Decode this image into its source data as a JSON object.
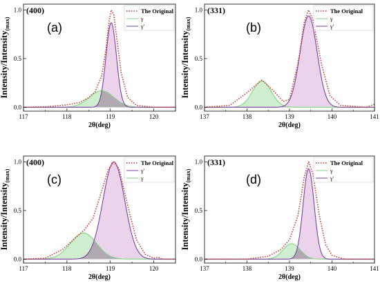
{
  "chart_data": [
    {
      "id": "a",
      "type": "line",
      "panel_label": "(a)",
      "peak_label": "(400)",
      "xlabel": "2θ(deg)",
      "ylabel": "Intensity/Intensity(max)",
      "xlim": [
        117,
        120.5
      ],
      "ylim": [
        -0.04,
        1.06
      ],
      "xticks": [
        117,
        118,
        119,
        120
      ],
      "yticks": [
        0.0,
        0.5,
        1.0
      ],
      "grid": false,
      "legend": {
        "placement": "top-right",
        "entries": [
          {
            "name": "The Original",
            "style": "dotted",
            "color": "#c0392b",
            "bold": true
          },
          {
            "name": "γ",
            "style": "solid",
            "color": "#7fd57f"
          },
          {
            "name": "γ'",
            "style": "solid",
            "color": "#7b3fa0"
          }
        ]
      },
      "series": [
        {
          "name": "γ",
          "color": "#7fd57f",
          "fill": "#bfe8bf",
          "peak": {
            "center": 118.8,
            "height": 0.17,
            "sigma": 0.28
          }
        },
        {
          "name": "γ'",
          "color": "#7b3fa0",
          "fill": "#e4c4e6",
          "peak": {
            "center": 119.02,
            "height": 0.87,
            "sigma": 0.12
          }
        },
        {
          "name": "The Original",
          "color": "#c0392b",
          "dotted": true,
          "points": [
            [
              117,
              0
            ],
            [
              117.5,
              0.005
            ],
            [
              118,
              0.025
            ],
            [
              118.3,
              0.05
            ],
            [
              118.5,
              0.1
            ],
            [
              118.65,
              0.16
            ],
            [
              118.8,
              0.32
            ],
            [
              118.9,
              0.6
            ],
            [
              118.97,
              0.88
            ],
            [
              119.02,
              1.0
            ],
            [
              119.08,
              0.95
            ],
            [
              119.15,
              0.7
            ],
            [
              119.25,
              0.35
            ],
            [
              119.4,
              0.1
            ],
            [
              119.6,
              0.02
            ],
            [
              120,
              0.0
            ],
            [
              120.5,
              0.0
            ]
          ]
        }
      ]
    },
    {
      "id": "b",
      "type": "line",
      "panel_label": "(b)",
      "peak_label": "(331)",
      "xlabel": "2θ(deg)",
      "ylabel": "Intensity/Intensity(max)",
      "xlim": [
        137,
        141
      ],
      "ylim": [
        -0.04,
        1.06
      ],
      "xticks": [
        137,
        138,
        139,
        140,
        141
      ],
      "yticks": [
        0.0,
        0.5,
        1.0
      ],
      "grid": false,
      "legend": {
        "placement": "top-right",
        "entries": [
          {
            "name": "The  Original",
            "style": "dotted",
            "color": "#c0392b",
            "bold": true
          },
          {
            "name": "γ",
            "style": "solid",
            "color": "#7fd57f"
          },
          {
            "name": "γ'",
            "style": "solid",
            "color": "#7b3fa0"
          }
        ]
      },
      "series": [
        {
          "name": "γ",
          "color": "#7fd57f",
          "fill": "#bfe8bf",
          "peak": {
            "center": 138.35,
            "height": 0.27,
            "sigma": 0.22
          }
        },
        {
          "name": "γ'",
          "color": "#7b3fa0",
          "fill": "#e4c4e6",
          "peak": {
            "center": 139.45,
            "height": 0.94,
            "sigma": 0.2
          }
        },
        {
          "name": "The Original",
          "color": "#c0392b",
          "dotted": true,
          "points": [
            [
              137,
              0
            ],
            [
              137.6,
              0.02
            ],
            [
              138,
              0.15
            ],
            [
              138.35,
              0.28
            ],
            [
              138.6,
              0.18
            ],
            [
              138.85,
              0.06
            ],
            [
              139.0,
              0.08
            ],
            [
              139.2,
              0.45
            ],
            [
              139.35,
              0.88
            ],
            [
              139.45,
              1.0
            ],
            [
              139.55,
              0.9
            ],
            [
              139.75,
              0.45
            ],
            [
              139.95,
              0.12
            ],
            [
              140.2,
              0.02
            ],
            [
              140.8,
              0.0
            ],
            [
              141,
              0.03
            ]
          ]
        }
      ]
    },
    {
      "id": "c",
      "type": "line",
      "panel_label": "(c)",
      "peak_label": "(400)",
      "xlabel": "2θ(deg)",
      "ylabel": "Intensity/Intensity(max)",
      "xlim": [
        117,
        120.5
      ],
      "ylim": [
        -0.04,
        1.06
      ],
      "xticks": [
        117,
        118,
        119,
        120
      ],
      "yticks": [
        0.0,
        0.5,
        1.0
      ],
      "grid": false,
      "legend": {
        "placement": "top-right",
        "entries": [
          {
            "name": "The Original",
            "style": "dotted",
            "color": "#c0392b",
            "bold": true
          },
          {
            "name": "γ'",
            "style": "solid",
            "color": "#7b3fa0"
          },
          {
            "name": "γ",
            "style": "solid",
            "color": "#7fd57f"
          }
        ]
      },
      "series": [
        {
          "name": "γ",
          "color": "#7fd57f",
          "fill": "#bfe8bf",
          "peak": {
            "center": 118.38,
            "height": 0.27,
            "sigma": 0.3
          }
        },
        {
          "name": "γ'",
          "color": "#7b3fa0",
          "fill": "#e4c4e6",
          "peak": {
            "center": 119.08,
            "height": 1.0,
            "sigma": 0.25
          }
        },
        {
          "name": "The Original",
          "color": "#c0392b",
          "dotted": true,
          "points": [
            [
              117,
              0
            ],
            [
              117.5,
              0.01
            ],
            [
              117.9,
              0.1
            ],
            [
              118.2,
              0.22
            ],
            [
              118.4,
              0.3
            ],
            [
              118.6,
              0.42
            ],
            [
              118.8,
              0.7
            ],
            [
              118.95,
              0.92
            ],
            [
              119.08,
              1.0
            ],
            [
              119.2,
              0.93
            ],
            [
              119.4,
              0.55
            ],
            [
              119.6,
              0.2
            ],
            [
              119.8,
              0.05
            ],
            [
              120.0,
              0.01
            ],
            [
              120.1,
              0.02
            ],
            [
              120.2,
              0.0
            ],
            [
              120.5,
              0.0
            ]
          ]
        }
      ]
    },
    {
      "id": "d",
      "type": "line",
      "panel_label": "(d)",
      "peak_label": "(331)",
      "xlabel": "2θ(deg)",
      "ylabel": "Intensity/Intensity(max)",
      "xlim": [
        137,
        141
      ],
      "ylim": [
        -0.04,
        1.06
      ],
      "xticks": [
        137,
        138,
        139,
        140,
        141
      ],
      "yticks": [
        0.0,
        0.5,
        1.0
      ],
      "grid": false,
      "legend": {
        "placement": "top-right",
        "entries": [
          {
            "name": "The Original",
            "style": "dotted",
            "color": "#c0392b",
            "bold": true
          },
          {
            "name": "γ",
            "style": "solid",
            "color": "#7fd57f"
          },
          {
            "name": "γ'",
            "style": "solid",
            "color": "#7b3fa0"
          }
        ]
      },
      "series": [
        {
          "name": "γ",
          "color": "#7fd57f",
          "fill": "#bfe8bf",
          "peak": {
            "center": 139.05,
            "height": 0.16,
            "sigma": 0.2
          }
        },
        {
          "name": "γ'",
          "color": "#7b3fa0",
          "fill": "#e4c4e6",
          "peak": {
            "center": 139.45,
            "height": 0.93,
            "sigma": 0.13
          }
        },
        {
          "name": "The Original",
          "color": "#c0392b",
          "dotted": true,
          "points": [
            [
              137,
              0
            ],
            [
              138,
              0.0
            ],
            [
              138.5,
              0.03
            ],
            [
              138.8,
              0.1
            ],
            [
              139.0,
              0.2
            ],
            [
              139.2,
              0.45
            ],
            [
              139.35,
              0.85
            ],
            [
              139.45,
              1.0
            ],
            [
              139.55,
              0.88
            ],
            [
              139.7,
              0.45
            ],
            [
              139.85,
              0.15
            ],
            [
              140.0,
              0.04
            ],
            [
              140.3,
              0.0
            ],
            [
              141,
              0.0
            ]
          ]
        }
      ]
    }
  ]
}
